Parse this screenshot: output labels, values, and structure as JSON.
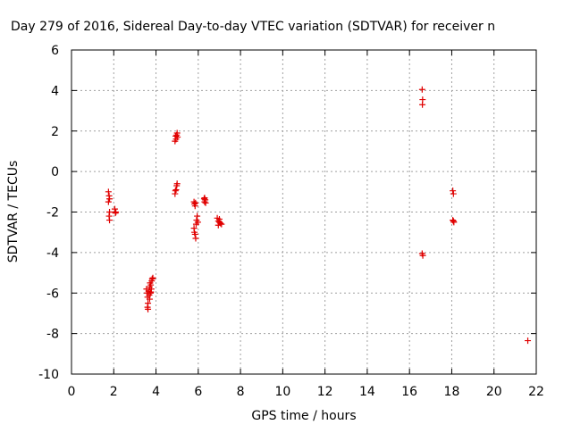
{
  "chart_data": {
    "type": "scatter",
    "title": "Day 279 of 2016, Sidereal Day-to-day VTEC variation (SDTVAR) for receiver n",
    "xlabel": "GPS time / hours",
    "ylabel": "SDTVAR / TECUs",
    "xlim": [
      0,
      22
    ],
    "ylim": [
      -10,
      6
    ],
    "xticks": [
      0,
      2,
      4,
      6,
      8,
      10,
      12,
      14,
      16,
      18,
      20,
      22
    ],
    "yticks": [
      -10,
      -8,
      -6,
      -4,
      -2,
      0,
      2,
      4,
      6
    ],
    "xtick_labels": [
      "0",
      "2",
      "4",
      "6",
      "8",
      "10",
      "12",
      "14",
      "16",
      "18",
      "20",
      "22"
    ],
    "ytick_labels": [
      "-10",
      "-8",
      "-6",
      "-4",
      "-2",
      "0",
      "2",
      "4",
      "6"
    ],
    "grid": true,
    "marker": "plus",
    "color": "#e00000",
    "series": [
      {
        "name": "SDTVAR",
        "points": [
          [
            1.75,
            -1.0
          ],
          [
            1.78,
            -1.2
          ],
          [
            1.8,
            -1.35
          ],
          [
            1.75,
            -1.5
          ],
          [
            1.8,
            -2.0
          ],
          [
            1.78,
            -2.2
          ],
          [
            1.8,
            -2.4
          ],
          [
            2.05,
            -1.85
          ],
          [
            2.1,
            -2.0
          ],
          [
            2.08,
            -2.05
          ],
          [
            3.55,
            -5.8
          ],
          [
            3.58,
            -6.0
          ],
          [
            3.6,
            -6.2
          ],
          [
            3.62,
            -6.5
          ],
          [
            3.6,
            -6.7
          ],
          [
            3.62,
            -6.8
          ],
          [
            3.65,
            -5.9
          ],
          [
            3.68,
            -6.1
          ],
          [
            3.7,
            -5.7
          ],
          [
            3.72,
            -5.5
          ],
          [
            3.75,
            -5.6
          ],
          [
            3.78,
            -5.8
          ],
          [
            3.8,
            -5.4
          ],
          [
            3.82,
            -5.3
          ],
          [
            3.85,
            -5.25
          ],
          [
            3.7,
            -6.3
          ],
          [
            3.74,
            -6.0
          ],
          [
            3.76,
            -5.95
          ],
          [
            4.9,
            1.5
          ],
          [
            4.95,
            1.6
          ],
          [
            4.98,
            1.8
          ],
          [
            5.0,
            1.9
          ],
          [
            5.02,
            1.7
          ],
          [
            4.93,
            1.75
          ],
          [
            4.9,
            -1.1
          ],
          [
            4.95,
            -0.9
          ],
          [
            4.98,
            -0.7
          ],
          [
            5.0,
            -0.6
          ],
          [
            4.92,
            -0.95
          ],
          [
            5.8,
            -1.5
          ],
          [
            5.82,
            -1.6
          ],
          [
            5.85,
            -1.7
          ],
          [
            5.8,
            -2.8
          ],
          [
            5.82,
            -3.0
          ],
          [
            5.85,
            -3.1
          ],
          [
            5.88,
            -3.3
          ],
          [
            5.9,
            -2.6
          ],
          [
            5.92,
            -2.4
          ],
          [
            5.95,
            -2.2
          ],
          [
            5.98,
            -2.5
          ],
          [
            5.87,
            -1.55
          ],
          [
            6.3,
            -1.3
          ],
          [
            6.33,
            -1.4
          ],
          [
            6.35,
            -1.55
          ],
          [
            6.3,
            -1.5
          ],
          [
            6.28,
            -1.35
          ],
          [
            6.9,
            -2.3
          ],
          [
            6.95,
            -2.45
          ],
          [
            7.0,
            -2.5
          ],
          [
            7.05,
            -2.55
          ],
          [
            7.1,
            -2.6
          ],
          [
            7.0,
            -2.35
          ],
          [
            6.95,
            -2.65
          ],
          [
            16.6,
            4.05
          ],
          [
            16.62,
            3.55
          ],
          [
            16.61,
            3.3
          ],
          [
            16.6,
            -4.05
          ],
          [
            16.63,
            -4.15
          ],
          [
            18.05,
            -0.95
          ],
          [
            18.08,
            -1.1
          ],
          [
            18.05,
            -2.4
          ],
          [
            18.08,
            -2.45
          ],
          [
            18.1,
            -2.5
          ],
          [
            21.6,
            -8.35
          ]
        ]
      }
    ]
  }
}
